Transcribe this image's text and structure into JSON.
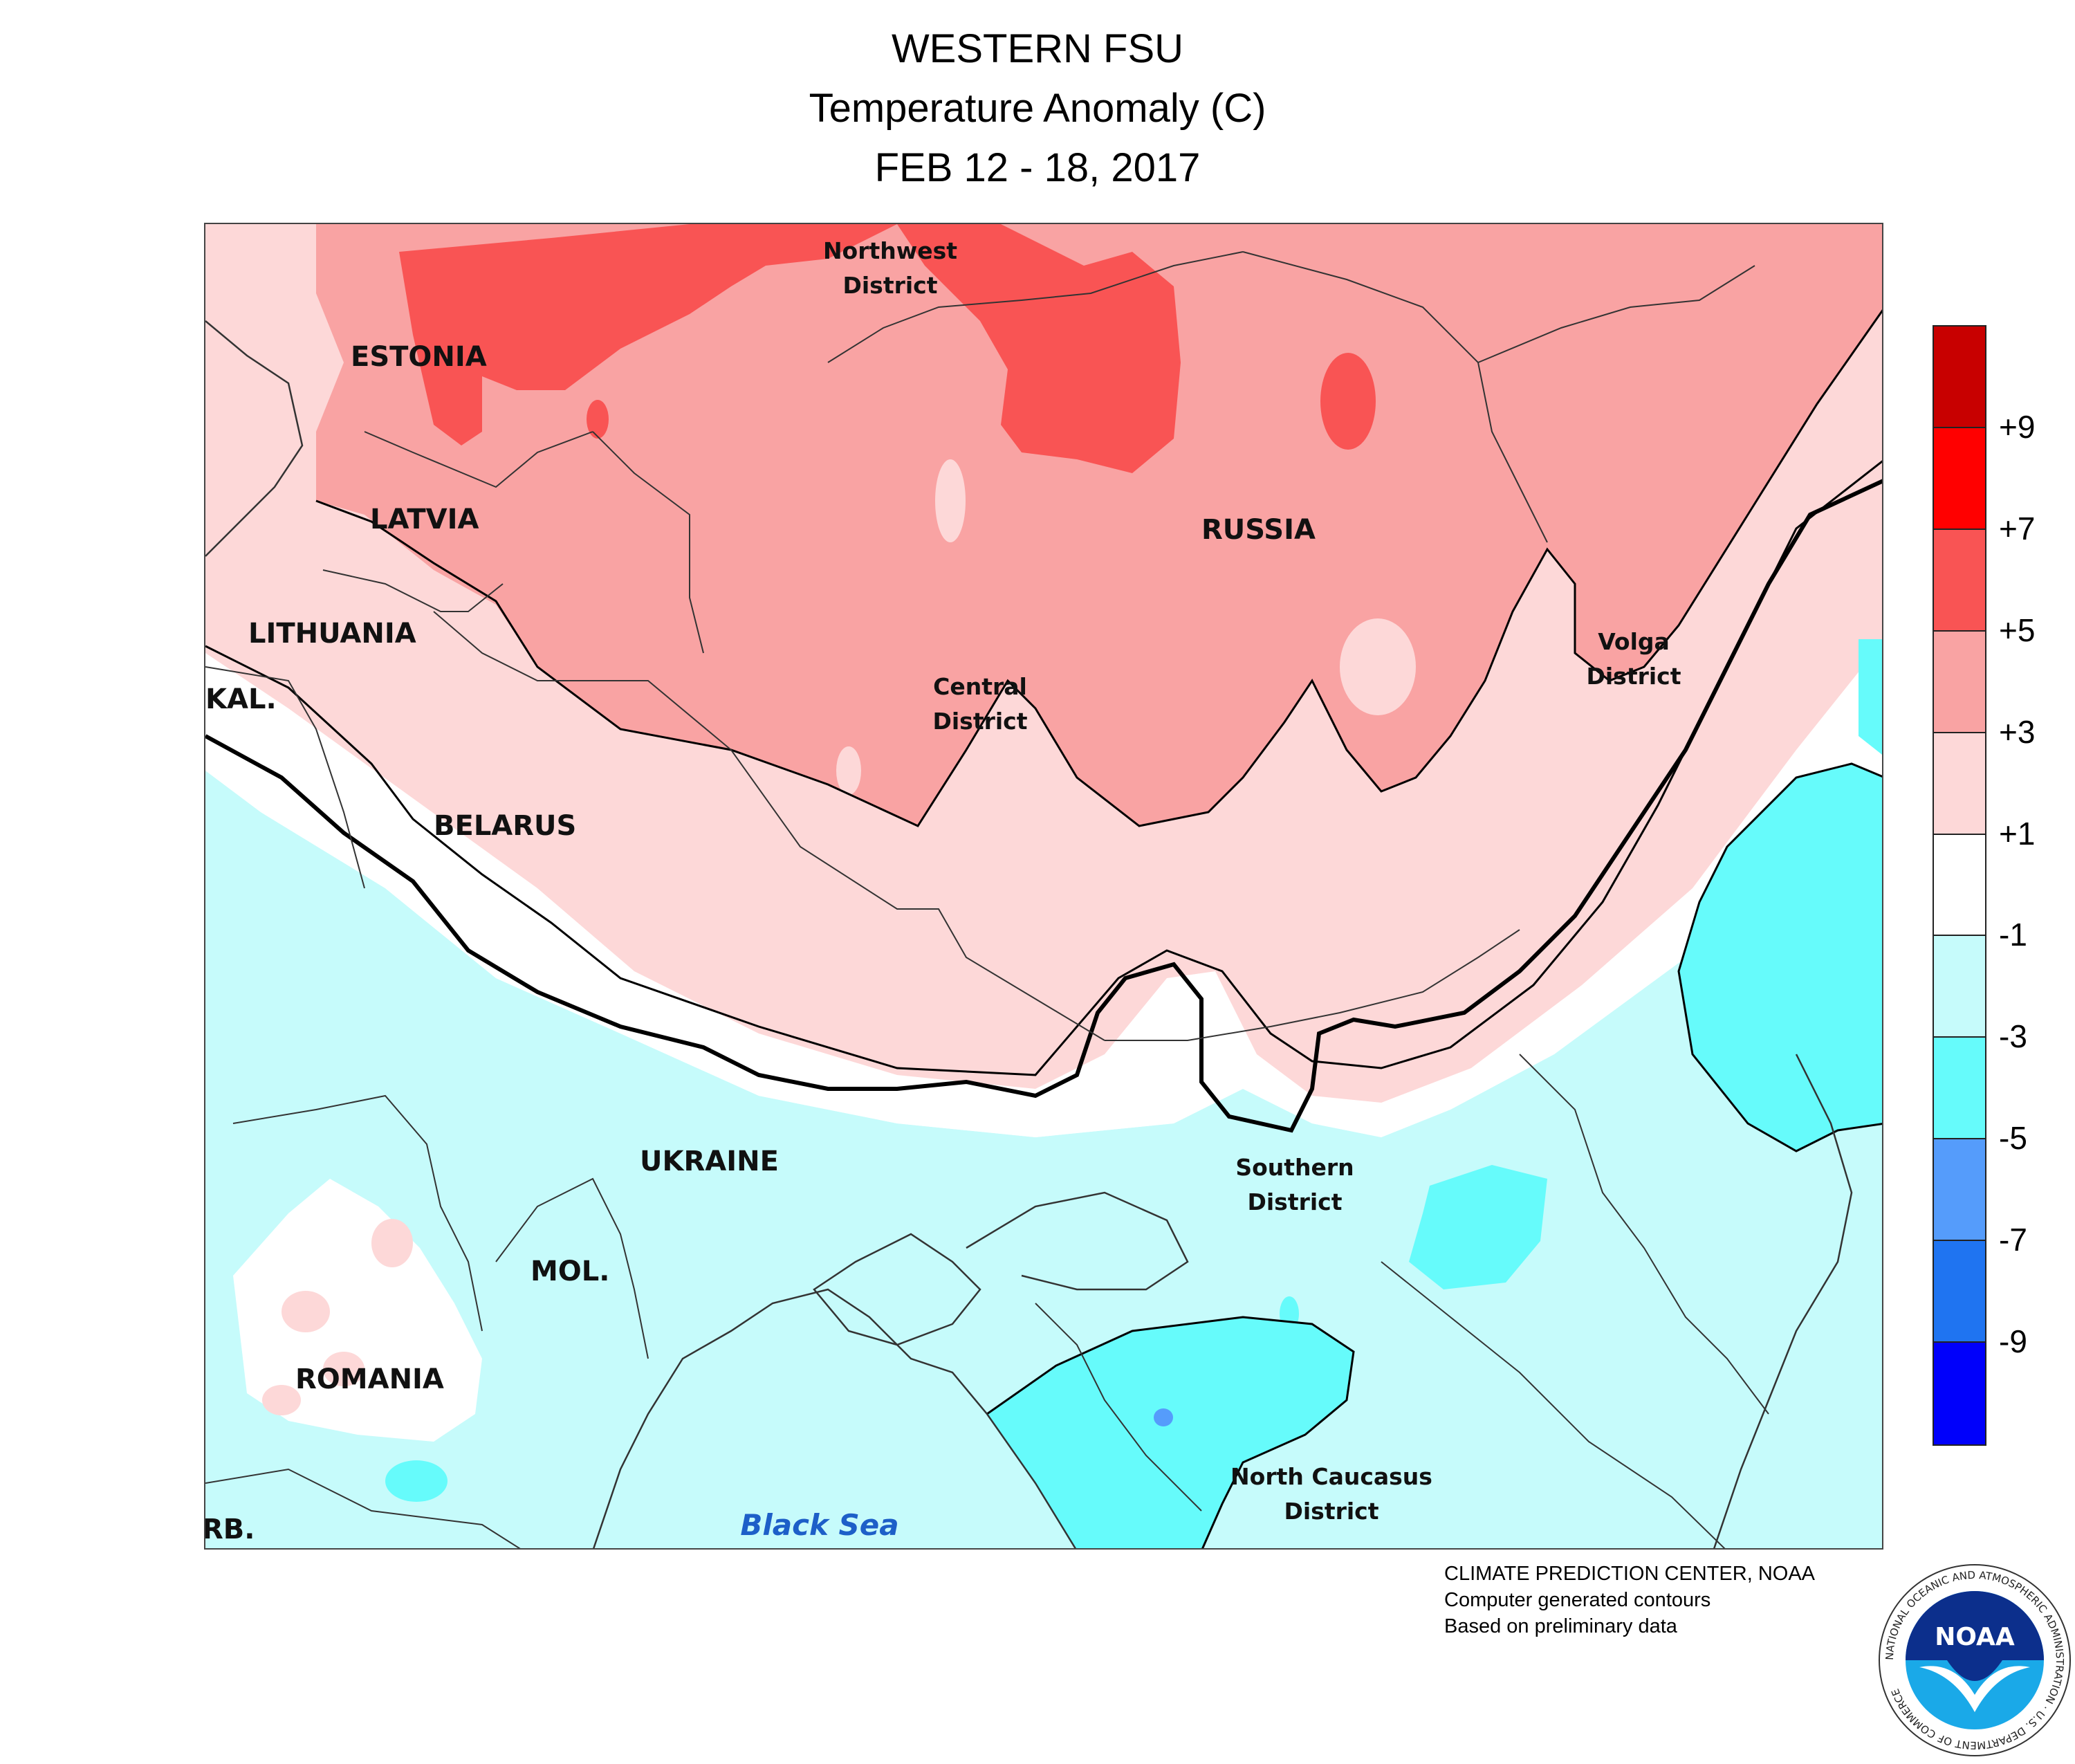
{
  "title": {
    "line1": "WESTERN FSU",
    "line2": "Temperature Anomaly (C)",
    "line3": "FEB 12 - 18, 2017"
  },
  "map": {
    "countries": [
      {
        "id": "estonia",
        "label": "ESTONIA"
      },
      {
        "id": "latvia",
        "label": "LATVIA"
      },
      {
        "id": "lithuania",
        "label": "LITHUANIA"
      },
      {
        "id": "kal",
        "label": "KAL."
      },
      {
        "id": "belarus",
        "label": "BELARUS"
      },
      {
        "id": "russia",
        "label": "RUSSIA"
      },
      {
        "id": "ukraine",
        "label": "UKRAINE"
      },
      {
        "id": "moldova",
        "label": "MOL."
      },
      {
        "id": "romania",
        "label": "ROMANIA"
      },
      {
        "id": "serbia",
        "label": "RB."
      }
    ],
    "districts": [
      {
        "id": "northwest",
        "line1": "Northwest",
        "line2": "District"
      },
      {
        "id": "central",
        "line1": "Central",
        "line2": "District"
      },
      {
        "id": "volga",
        "line1": "Volga",
        "line2": "District"
      },
      {
        "id": "southern",
        "line1": "Southern",
        "line2": "District"
      },
      {
        "id": "north-caucasus",
        "line1": "North Caucasus",
        "line2": "District"
      }
    ],
    "sea": {
      "label": "Black Sea"
    }
  },
  "legend": {
    "ticks": [
      "+9",
      "+7",
      "+5",
      "+3",
      "+1",
      "-1",
      "-3",
      "-5",
      "-7",
      "-9"
    ],
    "colors": [
      "#c80000",
      "#ff0000",
      "#f95454",
      "#f9a3a3",
      "#fdd8d8",
      "#ffffff",
      "#c6fbfb",
      "#66fbfb",
      "#559cfb",
      "#1f74f1",
      "#0000fb"
    ]
  },
  "palette": {
    "plus1to3": "#fdd8d8",
    "plus3to5": "#f9a3a3",
    "plus5to7": "#f95454",
    "minus1to3": "#c6fbfb",
    "minus3to5": "#66fbfb",
    "minus5to7": "#559cfb"
  },
  "credits": {
    "line1": "CLIMATE PREDICTION CENTER, NOAA",
    "line2": "Computer generated contours",
    "line3": "Based on preliminary data"
  },
  "logo": {
    "text": "NOAA",
    "ring_text": "NATIONAL OCEANIC AND ATMOSPHERIC ADMINISTRATION · U.S. DEPARTMENT OF COMMERCE"
  }
}
